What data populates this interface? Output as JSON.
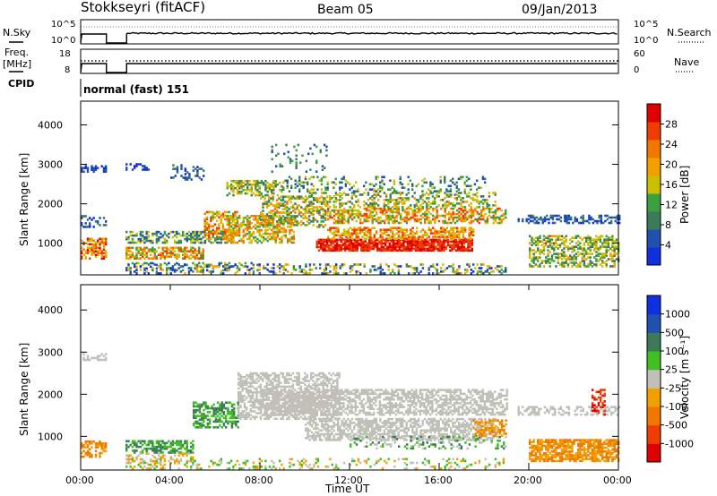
{
  "header": {
    "station": "Stokkseyri (fitACF)",
    "beam": "Beam 05",
    "date": "09/Jan/2013"
  },
  "summary": {
    "nsky_label": "N.Sky",
    "nsky_ticks": [
      "10^5",
      "10^0"
    ],
    "nsearch_label": "N.Search",
    "nsearch_ticks": [
      "10^5",
      "10^0"
    ],
    "freq_label_1": "Freq.",
    "freq_label_2": "[MHz]",
    "freq_ticks": [
      "18",
      "8"
    ],
    "nave_label": "Nave",
    "nave_ticks": [
      "60",
      "0"
    ],
    "cpid_label": "CPID",
    "cpid_text": "normal (fast) 151"
  },
  "colors": {
    "power_scale": [
      "#1030e0",
      "#2050b0",
      "#3c7a5a",
      "#3aa040",
      "#c8c000",
      "#f2a000",
      "#f07800",
      "#f03c00",
      "#e00000"
    ],
    "velocity_scale": [
      "#e00000",
      "#f03c00",
      "#f07800",
      "#f2a000",
      "#c0c0b8",
      "#40c020",
      "#3c7a5a",
      "#2050b0",
      "#1030e0"
    ]
  },
  "chart_data": [
    {
      "type": "heatmap",
      "name": "power",
      "ylabel": "Slant Range [km]",
      "y_ticks": [
        1000,
        2000,
        3000,
        4000
      ],
      "ylim": [
        200,
        4600
      ],
      "xlim_hours": [
        0,
        24
      ],
      "colorbar_label": "Power [dB]",
      "colorbar_ticks": [
        "4",
        "8",
        "12",
        "16",
        "20",
        "24",
        "28"
      ]
    },
    {
      "type": "heatmap",
      "name": "velocity",
      "xlabel": "Time UT",
      "ylabel": "Slant Range [km]",
      "y_ticks": [
        1000,
        2000,
        3000,
        4000
      ],
      "ylim": [
        200,
        4600
      ],
      "xlim_hours": [
        0,
        24
      ],
      "x_ticks": [
        "00:00",
        "04:00",
        "08:00",
        "12:00",
        "16:00",
        "20:00",
        "00:00"
      ],
      "colorbar_label": "Velocity [m s⁻¹]",
      "colorbar_ticks": [
        "-1000",
        "-500",
        "-100",
        "-25",
        "25",
        "100",
        "500",
        "1000"
      ]
    }
  ]
}
